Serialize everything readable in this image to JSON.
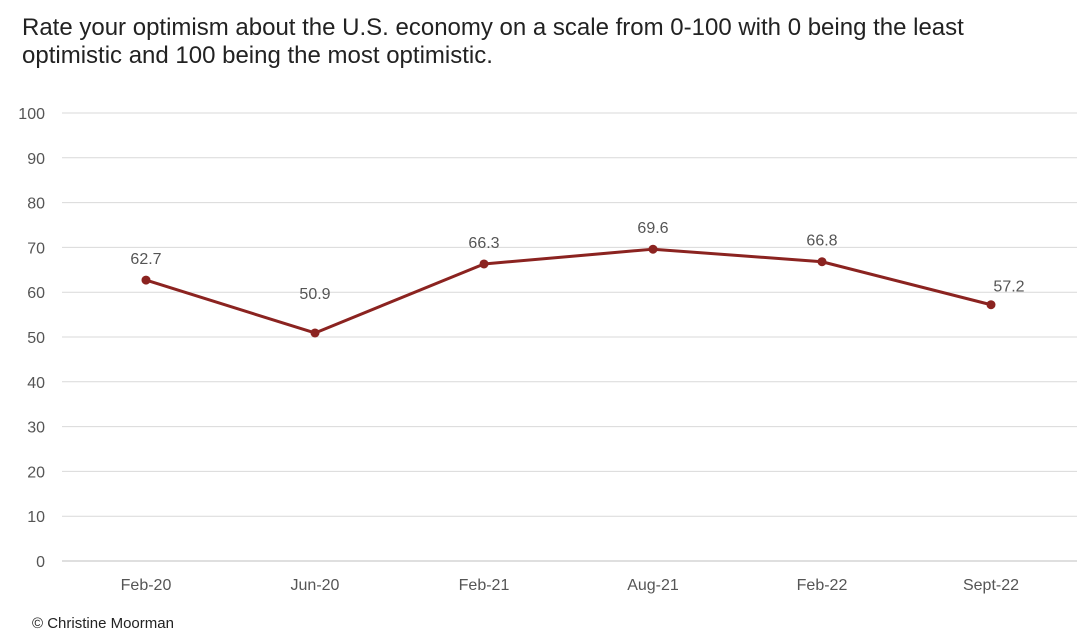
{
  "title": "Rate your optimism about the U.S. economy on a scale from 0-100 with 0 being the least optimistic and 100 being the most optimistic.",
  "credit": "© Christine Moorman",
  "colors": {
    "line": "#8b2320",
    "grid": "#d9d9d9",
    "text": "#555555"
  },
  "chart_data": {
    "type": "line",
    "categories": [
      "Feb-20",
      "Jun-20",
      "Feb-21",
      "Aug-21",
      "Feb-22",
      "Sept-22"
    ],
    "series": [
      {
        "values": [
          62.7,
          50.9,
          66.3,
          69.6,
          66.8,
          57.2
        ]
      }
    ],
    "data_labels": [
      "62.7",
      "50.9",
      "66.3",
      "69.6",
      "66.8",
      "57.2"
    ],
    "y_ticks": [
      0,
      10,
      20,
      30,
      40,
      50,
      60,
      70,
      80,
      90,
      100
    ],
    "ylim": [
      0,
      100
    ],
    "grid": true,
    "legend": "none",
    "markers": true
  }
}
